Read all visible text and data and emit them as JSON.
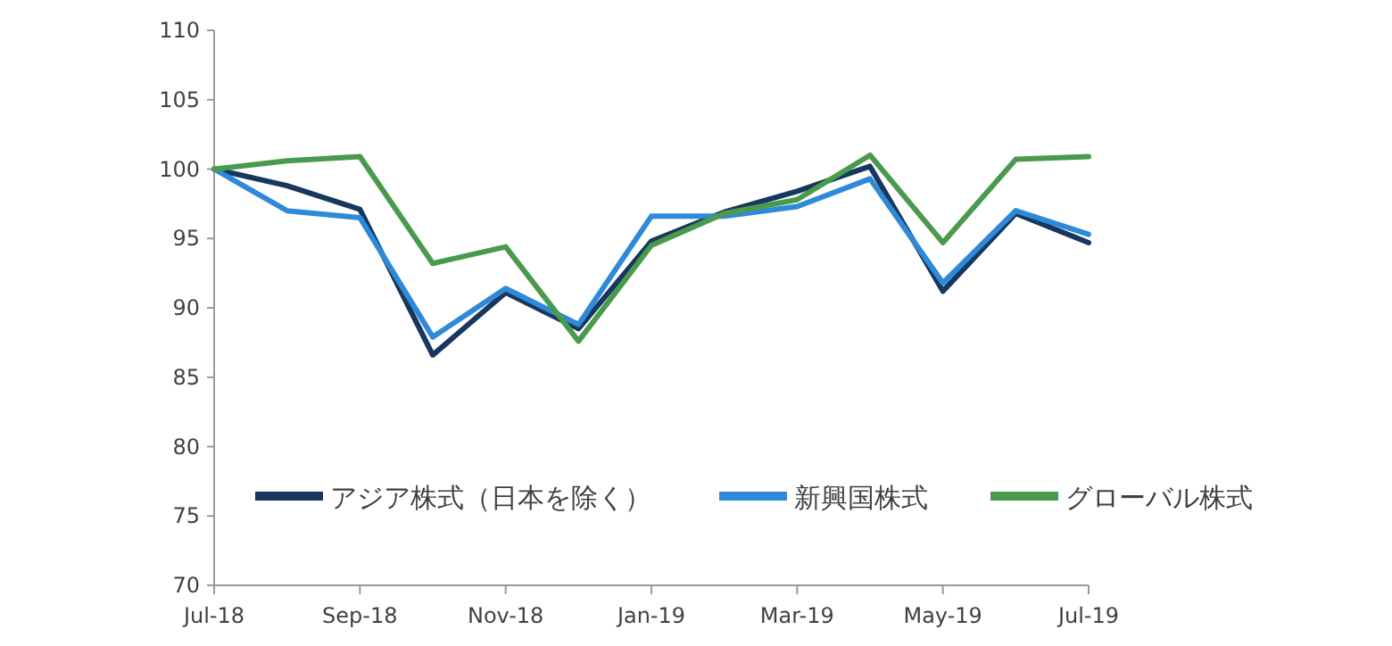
{
  "chart_data": {
    "type": "line",
    "categories": [
      "Jul-18",
      null,
      "Sep-18",
      null,
      "Nov-18",
      null,
      "Jan-19",
      null,
      "Mar-19",
      null,
      "May-19",
      null,
      "Jul-19"
    ],
    "series": [
      {
        "name": "アジア株式（日本を除く）",
        "color": "#17375e",
        "values": [
          100,
          98.8,
          97.1,
          86.6,
          91.1,
          88.5,
          94.8,
          96.9,
          98.4,
          100.2,
          91.2,
          96.8,
          94.7
        ]
      },
      {
        "name": "新興国株式",
        "color": "#2e8ad8",
        "values": [
          100,
          97.0,
          96.5,
          87.9,
          91.4,
          88.8,
          96.6,
          96.6,
          97.3,
          99.3,
          91.8,
          97.0,
          95.3
        ]
      },
      {
        "name": "グローバル株式",
        "color": "#4a9a4e",
        "values": [
          100,
          100.6,
          100.9,
          93.2,
          94.4,
          87.6,
          94.5,
          96.8,
          97.8,
          101.0,
          94.7,
          100.7,
          100.9
        ]
      }
    ],
    "ylim": [
      70,
      110
    ],
    "yticks": [
      70,
      75,
      80,
      85,
      90,
      95,
      100,
      105,
      110
    ],
    "legend": "bottom",
    "grid": false,
    "marker": "none",
    "line_style": "solid"
  }
}
